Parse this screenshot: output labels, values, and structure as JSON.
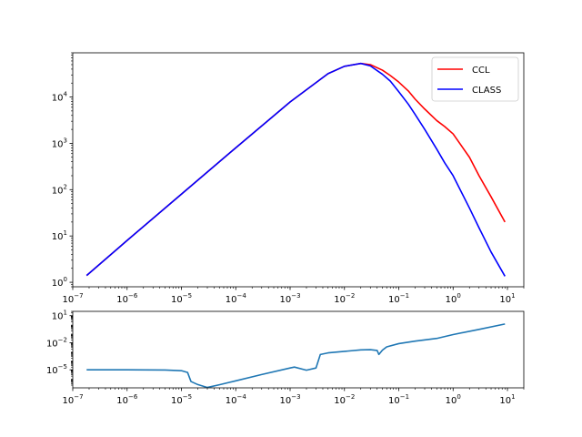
{
  "chart_data": [
    {
      "type": "line",
      "title": "",
      "xlabel": "",
      "ylabel": "",
      "xscale": "log",
      "yscale": "log",
      "xlim": [
        1e-07,
        20
      ],
      "ylim": [
        0.8,
        90000
      ],
      "x_ticks": [
        {
          "value": 1e-07,
          "label": "10",
          "exp": "−7"
        },
        {
          "value": 1e-06,
          "label": "10",
          "exp": "−6"
        },
        {
          "value": 1e-05,
          "label": "10",
          "exp": "−5"
        },
        {
          "value": 0.0001,
          "label": "10",
          "exp": "−4"
        },
        {
          "value": 0.001,
          "label": "10",
          "exp": "−3"
        },
        {
          "value": 0.01,
          "label": "10",
          "exp": "−2"
        },
        {
          "value": 0.1,
          "label": "10",
          "exp": "−1"
        },
        {
          "value": 1,
          "label": "10",
          "exp": "0"
        },
        {
          "value": 10,
          "label": "10",
          "exp": "1"
        }
      ],
      "y_ticks": [
        {
          "value": 1,
          "label": "10",
          "exp": "0"
        },
        {
          "value": 10,
          "label": "10",
          "exp": "1"
        },
        {
          "value": 100,
          "label": "10",
          "exp": "2"
        },
        {
          "value": 1000,
          "label": "10",
          "exp": "3"
        },
        {
          "value": 10000,
          "label": "10",
          "exp": "4"
        }
      ],
      "legend": {
        "position": "top-right",
        "entries": [
          "CCL",
          "CLASS"
        ]
      },
      "grid": false,
      "series": [
        {
          "name": "CCL",
          "color": "#ff0000",
          "x": [
            1.8e-07,
            1e-06,
            1e-05,
            0.0001,
            0.001,
            0.005,
            0.01,
            0.02,
            0.03,
            0.05,
            0.07,
            0.1,
            0.15,
            0.2,
            0.3,
            0.5,
            0.7,
            1,
            2,
            3,
            5,
            9
          ],
          "y": [
            1.4,
            8,
            80,
            800,
            7800,
            32000,
            46000,
            53000,
            50000,
            38000,
            29000,
            21000,
            13500,
            9000,
            5500,
            3100,
            2300,
            1600,
            500,
            200,
            70,
            20
          ]
        },
        {
          "name": "CLASS",
          "color": "#0000ff",
          "x": [
            1.8e-07,
            1e-06,
            1e-05,
            0.0001,
            0.001,
            0.005,
            0.01,
            0.02,
            0.03,
            0.05,
            0.07,
            0.1,
            0.15,
            0.2,
            0.3,
            0.5,
            0.7,
            1,
            2,
            3,
            5,
            9
          ],
          "y": [
            1.4,
            8,
            80,
            800,
            7800,
            32000,
            46000,
            53000,
            47000,
            31000,
            22000,
            13000,
            7000,
            4200,
            2000,
            750,
            380,
            200,
            40,
            15,
            4.5,
            1.35
          ]
        }
      ]
    },
    {
      "type": "line",
      "title": "",
      "xlabel": "",
      "ylabel": "",
      "xscale": "log",
      "yscale": "log",
      "xlim": [
        1e-07,
        20
      ],
      "ylim": [
        1e-07,
        30
      ],
      "x_ticks": [
        {
          "value": 1e-07,
          "label": "10",
          "exp": "−7"
        },
        {
          "value": 1e-06,
          "label": "10",
          "exp": "−6"
        },
        {
          "value": 1e-05,
          "label": "10",
          "exp": "−5"
        },
        {
          "value": 0.0001,
          "label": "10",
          "exp": "−4"
        },
        {
          "value": 0.001,
          "label": "10",
          "exp": "−3"
        },
        {
          "value": 0.01,
          "label": "10",
          "exp": "−2"
        },
        {
          "value": 0.1,
          "label": "10",
          "exp": "−1"
        },
        {
          "value": 1,
          "label": "10",
          "exp": "0"
        },
        {
          "value": 10,
          "label": "10",
          "exp": "1"
        }
      ],
      "y_ticks": [
        {
          "value": 1e-05,
          "label": "10",
          "exp": "−5"
        },
        {
          "value": 0.01,
          "label": "10",
          "exp": "−2"
        },
        {
          "value": 10,
          "label": "10",
          "exp": "1"
        }
      ],
      "grid": false,
      "series": [
        {
          "color": "#1f77b4",
          "x": [
            1.8e-07,
            1e-06,
            5e-06,
            1e-05,
            1.3e-05,
            1.5e-05,
            2e-05,
            3e-05,
            5e-05,
            0.0001,
            0.0003,
            0.001,
            0.0012,
            0.002,
            0.003,
            0.0036,
            0.005,
            0.01,
            0.02,
            0.03,
            0.04,
            0.043,
            0.05,
            0.06,
            0.1,
            0.2,
            0.5,
            1,
            3,
            9
          ],
          "y": [
            1e-05,
            1e-05,
            9.5e-06,
            8e-06,
            5e-06,
            5e-07,
            2.3e-07,
            1.1e-07,
            2.2e-07,
            6e-07,
            3e-06,
            1.6e-05,
            2e-05,
            9e-06,
            1.6e-05,
            0.0005,
            0.00075,
            0.0011,
            0.0016,
            0.0017,
            0.0014,
            0.0005,
            0.0015,
            0.0035,
            0.008,
            0.015,
            0.03,
            0.08,
            0.3,
            1.2
          ]
        }
      ]
    }
  ]
}
